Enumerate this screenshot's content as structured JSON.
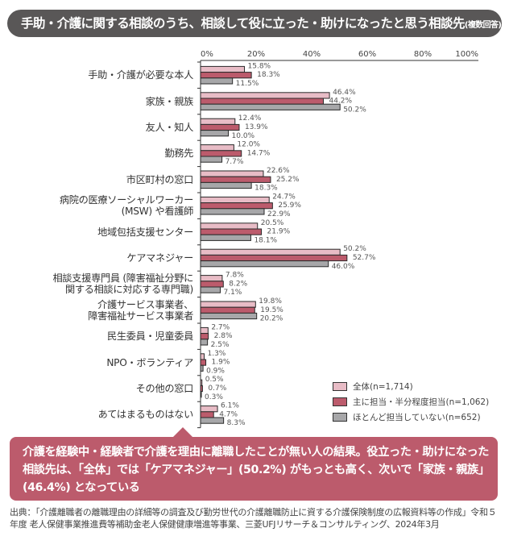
{
  "header": {
    "title": "手助・介護に関する相談のうち、相談して役に立った・助けになったと思う相談先",
    "note": "(複数回答)"
  },
  "chart_data": {
    "type": "bar",
    "orientation": "horizontal",
    "xlim": [
      0,
      100
    ],
    "ticks": [
      "0%",
      "20%",
      "40%",
      "60%",
      "80%",
      "100%"
    ],
    "tick_values": [
      0,
      20,
      40,
      60,
      80,
      100
    ],
    "categories": [
      "手助・介護が必要な本人",
      "家族・親族",
      "友人・知人",
      "勤務先",
      "市区町村の窓口",
      "病院の医療ソーシャルワーカー\n(MSW) や看護師",
      "地域包括支援センター",
      "ケアマネジャー",
      "相談支援専門員 (障害福祉分野に\n関する相談に対応する専門職)",
      "介護サービス事業者、\n障害福祉サービス事業者",
      "民生委員・児童委員",
      "NPO・ボランティア",
      "その他の窓口",
      "あてはまるものはない"
    ],
    "series": [
      {
        "name": "全体(n=1,714)",
        "color": "#e8bcc6",
        "values": [
          15.8,
          46.4,
          12.4,
          12.0,
          22.6,
          24.7,
          20.5,
          50.2,
          7.8,
          19.8,
          2.7,
          1.3,
          0.5,
          6.1
        ]
      },
      {
        "name": "主に担当・半分程度担当(n=1,062)",
        "color": "#bc5b6c",
        "values": [
          18.3,
          44.2,
          13.9,
          14.7,
          25.2,
          25.9,
          21.9,
          52.7,
          8.2,
          19.5,
          2.8,
          1.9,
          0.7,
          4.7
        ]
      },
      {
        "name": "ほとんど担当していない(n=652)",
        "color": "#a7a7a9",
        "values": [
          11.5,
          50.2,
          10.0,
          7.7,
          18.3,
          22.9,
          18.1,
          46.0,
          7.1,
          20.2,
          2.5,
          0.9,
          0.3,
          8.3
        ]
      }
    ],
    "legend_position": "bottom-right",
    "grid": false
  },
  "callout": {
    "text": "介護を経験中・経験者で介護を理由に離職したことが無い人の結果。役立った・助けになった相談先は、「全体」では「ケアマネジャー」(50.2%) がもっとも高く、次いで「家族・親族」(46.4%) となっている"
  },
  "source": {
    "text": "出典：「介護離職者の離職理由の詳細等の調査及び勤労世代の介護離職防止に資する介護保険制度の広報資料等の作成」令和５年度 老人保健事業推進費等補助金老人保健健康増進等事業、三菱UFJリサーチ＆コンサルティング、2024年3月"
  }
}
